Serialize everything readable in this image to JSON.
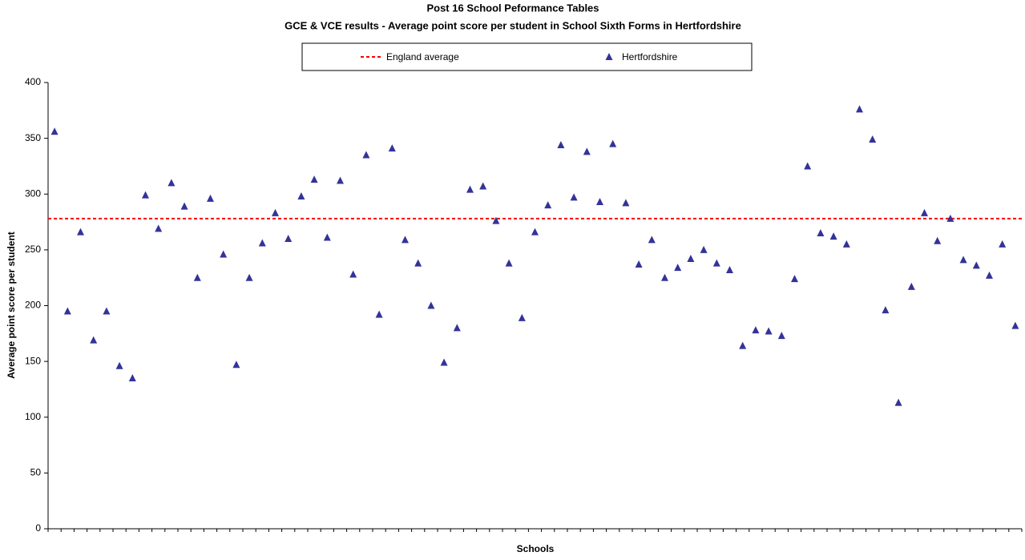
{
  "chart_data": {
    "type": "scatter",
    "title": "Post 16 School Peformance Tables",
    "subtitle": "GCE & VCE results - Average point score per student in School Sixth Forms in Hertfordshire",
    "x_label": "Schools",
    "y_label": "Average point score per student",
    "categories": [
      null,
      null,
      null,
      null,
      null,
      null,
      null,
      null,
      null,
      null,
      null,
      null,
      null,
      null,
      null,
      null,
      null,
      null,
      null,
      null,
      null,
      null,
      null,
      null,
      null,
      null,
      null,
      null,
      null,
      null,
      null,
      null,
      null,
      null,
      null,
      null,
      null,
      null,
      null,
      null,
      null,
      null,
      null,
      null,
      null,
      null,
      null,
      null,
      null,
      null,
      null,
      null,
      null,
      null,
      null,
      null,
      null,
      null,
      null,
      null,
      null,
      null,
      null,
      null,
      null,
      null,
      null,
      null,
      null,
      null,
      null,
      null,
      null,
      null,
      null
    ],
    "reference_line": {
      "name": "England average",
      "value": 278,
      "color": "#ff0000",
      "style": "dashed"
    },
    "series": [
      {
        "name": "Hertfordshire",
        "color": "#333399",
        "marker": "triangle",
        "values": [
          356,
          195,
          266,
          169,
          195,
          146,
          135,
          299,
          269,
          310,
          289,
          225,
          296,
          246,
          147,
          225,
          256,
          283,
          260,
          298,
          313,
          261,
          312,
          228,
          335,
          192,
          341,
          259,
          238,
          200,
          149,
          180,
          304,
          307,
          276,
          238,
          189,
          266,
          290,
          344,
          297,
          338,
          293,
          345,
          292,
          237,
          259,
          225,
          234,
          242,
          250,
          238,
          232,
          164,
          178,
          177,
          173,
          224,
          325,
          265,
          262,
          255,
          376,
          349,
          196,
          113,
          217,
          283,
          258,
          278,
          241,
          236,
          227,
          255,
          182
        ]
      }
    ],
    "ylim": [
      0,
      400
    ],
    "yticks": [
      0,
      50,
      100,
      150,
      200,
      250,
      300,
      350,
      400
    ],
    "grid": false,
    "legend": "top"
  }
}
